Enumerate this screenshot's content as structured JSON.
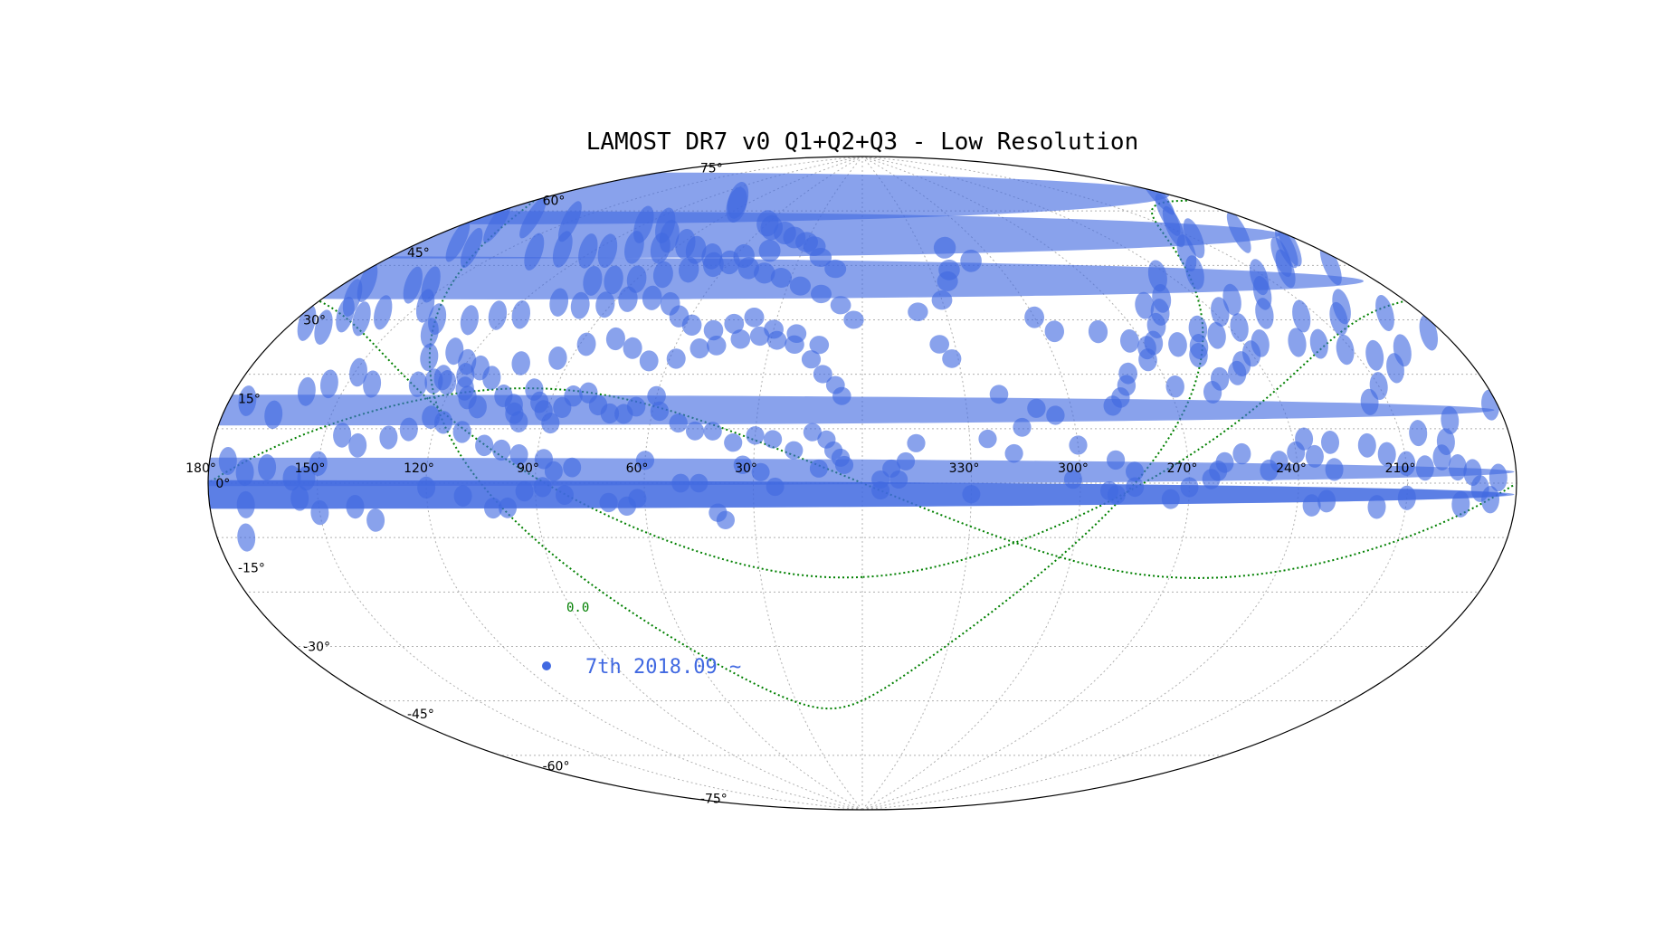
{
  "chart_data": {
    "type": "scatter",
    "projection": "aitoff",
    "title": "LAMOST DR7 v0 Q1+Q2+Q3 - Low Resolution",
    "xlabel": "",
    "ylabel": "",
    "lon_direction": "decreasing to the right",
    "grid": true,
    "lon_tick_labels": [
      {
        "lon": 330,
        "label": "330°"
      },
      {
        "lon": 300,
        "label": "300°"
      },
      {
        "lon": 270,
        "label": "270°"
      },
      {
        "lon": 240,
        "label": "240°"
      },
      {
        "lon": 210,
        "label": "210°"
      },
      {
        "lon": 180,
        "label": "180°"
      },
      {
        "lon": 150,
        "label": "150°"
      },
      {
        "lon": 120,
        "label": "120°"
      },
      {
        "lon": 90,
        "label": "90°"
      },
      {
        "lon": 60,
        "label": "60°"
      },
      {
        "lon": 30,
        "label": "30°"
      }
    ],
    "lat_tick_labels": [
      {
        "lat": 75,
        "label": "75°"
      },
      {
        "lat": 60,
        "label": "60°"
      },
      {
        "lat": 45,
        "label": "45°"
      },
      {
        "lat": 30,
        "label": "30°"
      },
      {
        "lat": 15,
        "label": "15°"
      },
      {
        "lat": 0,
        "label": "0°"
      },
      {
        "lat": -15,
        "label": "-15°"
      },
      {
        "lat": -30,
        "label": "-30°"
      },
      {
        "lat": -45,
        "label": "-45°"
      },
      {
        "lat": -60,
        "label": "-60°"
      },
      {
        "lat": -75,
        "label": "-75°"
      }
    ],
    "curve_annotation": {
      "text": "0.0",
      "color": "#008000"
    },
    "legend": {
      "label": "7th 2018.09 ~",
      "color": "#4169e1",
      "position": "lower-left"
    },
    "colors": {
      "plates": "#4169e1",
      "curves": "#008000",
      "grid": "#b0b0b0",
      "frame": "#000000"
    },
    "series": [
      {
        "name": "7th 2018.09 ~",
        "marker": "circle (2.5° radius field, projected)",
        "points": [
          [
            100,
            74
          ],
          [
            95,
            73
          ],
          [
            60,
            70
          ],
          [
            55,
            69
          ],
          [
            45,
            68
          ],
          [
            38,
            67
          ],
          [
            30,
            66
          ],
          [
            25,
            65
          ],
          [
            20,
            62
          ],
          [
            12,
            59
          ],
          [
            120,
            64
          ],
          [
            110,
            65
          ],
          [
            100,
            63
          ],
          [
            88,
            62
          ],
          [
            80,
            61
          ],
          [
            70,
            60
          ],
          [
            60,
            59
          ],
          [
            50,
            58
          ],
          [
            42,
            57
          ],
          [
            34,
            56
          ],
          [
            25,
            54
          ],
          [
            16,
            52
          ],
          [
            8,
            49
          ],
          [
            3,
            45
          ],
          [
            150,
            60
          ],
          [
            165,
            58
          ],
          [
            172,
            55
          ],
          [
            175,
            62
          ],
          [
            183,
            63
          ],
          [
            200,
            60
          ],
          [
            192,
            53
          ],
          [
            188,
            48
          ],
          [
            185,
            43
          ],
          [
            208,
            58
          ],
          [
            210,
            55
          ],
          [
            222,
            53
          ],
          [
            230,
            49
          ],
          [
            244,
            50
          ],
          [
            252,
            45
          ],
          [
            257,
            42
          ],
          [
            262,
            39
          ],
          [
            267,
            35
          ],
          [
            272,
            31
          ],
          [
            268,
            24
          ],
          [
            280,
            28
          ],
          [
            282,
            25
          ],
          [
            285,
            22
          ],
          [
            288,
            20
          ],
          [
            300,
            44
          ],
          [
            310,
            60
          ],
          [
            322,
            58
          ],
          [
            325,
            55
          ],
          [
            330,
            50
          ],
          [
            340,
            47
          ],
          [
            335,
            38
          ],
          [
            332,
            34
          ],
          [
            320,
            24
          ],
          [
            305,
            18
          ],
          [
            310,
            20
          ],
          [
            315,
            15
          ],
          [
            345,
            11
          ],
          [
            348,
            6
          ],
          [
            355,
            1
          ],
          [
            352,
            4
          ],
          [
            325,
            12
          ],
          [
            318,
            8
          ],
          [
            300,
            10
          ],
          [
            290,
            6
          ],
          [
            285,
            3
          ],
          [
            290,
            -3
          ],
          [
            255,
            7
          ],
          [
            262,
            3
          ],
          [
            237,
            10
          ],
          [
            230,
            3
          ],
          [
            232,
            -4
          ],
          [
            215,
            17
          ],
          [
            210,
            20
          ],
          [
            202,
            23
          ],
          [
            205,
            10
          ],
          [
            198,
            8
          ],
          [
            195,
            12
          ],
          [
            182,
            14
          ],
          [
            179,
            13
          ],
          [
            175,
            15
          ],
          [
            166,
            13
          ],
          [
            160,
            18
          ],
          [
            155,
            20
          ],
          [
            149,
            23
          ],
          [
            143,
            21
          ],
          [
            130,
            22
          ],
          [
            126,
            23
          ],
          [
            124,
            24
          ],
          [
            122,
            23
          ],
          [
            118,
            25
          ],
          [
            116,
            22
          ],
          [
            114,
            20
          ],
          [
            110,
            18
          ],
          [
            104,
            21
          ],
          [
            100,
            19
          ],
          [
            99,
            17
          ],
          [
            97,
            15
          ],
          [
            96,
            23
          ],
          [
            93,
            20
          ],
          [
            91,
            18
          ],
          [
            88,
            15
          ],
          [
            86,
            19
          ],
          [
            84,
            22
          ],
          [
            80,
            23
          ],
          [
            76,
            20
          ],
          [
            72,
            18
          ],
          [
            68,
            18
          ],
          [
            65,
            20
          ],
          [
            60,
            23
          ],
          [
            58,
            19
          ],
          [
            52,
            16
          ],
          [
            47,
            14
          ],
          [
            42,
            14
          ],
          [
            36,
            11
          ],
          [
            30,
            13
          ],
          [
            25,
            12
          ],
          [
            19,
            9
          ],
          [
            14,
            14
          ],
          [
            10,
            12
          ],
          [
            8,
            9
          ],
          [
            6,
            7
          ],
          [
            5,
            5
          ],
          [
            12,
            4
          ],
          [
            24,
            -1
          ],
          [
            45,
            0
          ],
          [
            50,
            0
          ],
          [
            60,
            6
          ],
          [
            80,
            4
          ],
          [
            85,
            3
          ],
          [
            88,
            6
          ],
          [
            95,
            7
          ],
          [
            100,
            8
          ],
          [
            105,
            9
          ],
          [
            112,
            12
          ],
          [
            118,
            14
          ],
          [
            122,
            15
          ],
          [
            127,
            12
          ],
          [
            132,
            10
          ],
          [
            140,
            8
          ],
          [
            145,
            10
          ],
          [
            150,
            4
          ],
          [
            153,
            1
          ],
          [
            157,
            1
          ],
          [
            164,
            3
          ],
          [
            170,
            2
          ],
          [
            175,
            4
          ],
          [
            178,
            2
          ],
          [
            185,
            1
          ],
          [
            192,
            2
          ],
          [
            196,
            3
          ],
          [
            200,
            5
          ],
          [
            205,
            3
          ],
          [
            210,
            4
          ],
          [
            215,
            6
          ],
          [
            220,
            8
          ],
          [
            230,
            9
          ],
          [
            235,
            6
          ],
          [
            240,
            7
          ],
          [
            245,
            5
          ],
          [
            248,
            3
          ],
          [
            260,
            5
          ],
          [
            264,
            1
          ],
          [
            270,
            -1
          ],
          [
            275,
            -4
          ],
          [
            285,
            -1
          ],
          [
            292,
            -2
          ],
          [
            302,
            1
          ],
          [
            330,
            -3
          ],
          [
            350,
            1
          ],
          [
            355,
            -2
          ],
          [
            170,
            -4
          ],
          [
            178,
            -2
          ],
          [
            187,
            -3
          ],
          [
            195,
            -4
          ],
          [
            210,
            -3
          ],
          [
            218,
            -5
          ],
          [
            236,
            -5
          ],
          [
            150,
            -6
          ],
          [
            155,
            -3
          ],
          [
            172,
            -10
          ],
          [
            180,
            -2
          ],
          [
            190,
            -1
          ],
          [
            140,
            -5
          ],
          [
            135,
            -8
          ],
          [
            120,
            -1
          ],
          [
            110,
            -3
          ],
          [
            102,
            -6
          ],
          [
            98,
            -6
          ],
          [
            93,
            -2
          ],
          [
            88,
            -1
          ],
          [
            82,
            -3
          ],
          [
            70,
            -5
          ],
          [
            65,
            -6
          ],
          [
            62,
            -4
          ],
          [
            33,
            5
          ],
          [
            28,
            3
          ],
          [
            40,
            -8
          ],
          [
            38,
            -10
          ],
          [
            138,
            33
          ],
          [
            132,
            28
          ],
          [
            126,
            30
          ],
          [
            120,
            28
          ],
          [
            115,
            27
          ],
          [
            110,
            25
          ],
          [
            104,
            29
          ],
          [
            94,
            31
          ],
          [
            88,
            35
          ],
          [
            80,
            37
          ],
          [
            73,
            35
          ],
          [
            66,
            32
          ],
          [
            58,
            33
          ],
          [
            52,
            36
          ],
          [
            47,
            37
          ],
          [
            40,
            39
          ],
          [
            34,
            40
          ],
          [
            28,
            39
          ],
          [
            22,
            38
          ],
          [
            16,
            34
          ],
          [
            12,
            30
          ],
          [
            8,
            27
          ],
          [
            6,
            24
          ],
          [
            158,
            35
          ],
          [
            162,
            33
          ],
          [
            168,
            33
          ],
          [
            170,
            30
          ],
          [
            176,
            30
          ],
          [
            184,
            28
          ],
          [
            196,
            26
          ],
          [
            205,
            26
          ],
          [
            212,
            28
          ],
          [
            218,
            30
          ],
          [
            224,
            31
          ],
          [
            235,
            32
          ],
          [
            240,
            30
          ],
          [
            245,
            28
          ],
          [
            248,
            26
          ],
          [
            254,
            25
          ],
          [
            258,
            22
          ],
          [
            160,
            41
          ],
          [
            155,
            42
          ],
          [
            148,
            38
          ],
          [
            140,
            36
          ],
          [
            130,
            37
          ],
          [
            123,
            39
          ],
          [
            116,
            40
          ],
          [
            108,
            44
          ],
          [
            100,
            44
          ],
          [
            92,
            45
          ],
          [
            86,
            47
          ],
          [
            78,
            48
          ],
          [
            70,
            47
          ],
          [
            64,
            44
          ],
          [
            58,
            42
          ],
          [
            50,
            41
          ],
          [
            44,
            43
          ],
          [
            38,
            45
          ],
          [
            30,
            42
          ],
          [
            22,
            41
          ],
          [
            14,
            38
          ],
          [
            180,
            39
          ],
          [
            174,
            39
          ],
          [
            172,
            36
          ],
          [
            190,
            33
          ],
          [
            200,
            36
          ],
          [
            205,
            34
          ],
          [
            215,
            36
          ],
          [
            225,
            38
          ],
          [
            237,
            36
          ],
          [
            246,
            35
          ],
          [
            256,
            31
          ],
          [
            260,
            34
          ],
          [
            270,
            34
          ],
          [
            274,
            36
          ],
          [
            282,
            39
          ],
          [
            296,
            40
          ],
          [
            162,
            50
          ],
          [
            170,
            50
          ],
          [
            178,
            50
          ],
          [
            186,
            48
          ],
          [
            195,
            47
          ],
          [
            200,
            45
          ],
          [
            212,
            45
          ],
          [
            218,
            42
          ],
          [
            230,
            42
          ],
          [
            238,
            40
          ],
          [
            250,
            37
          ],
          [
            254,
            33
          ],
          [
            105,
            50
          ],
          [
            98,
            51
          ],
          [
            90,
            52
          ],
          [
            82,
            54
          ],
          [
            74,
            56
          ],
          [
            66,
            58
          ],
          [
            56,
            61
          ],
          [
            46,
            63
          ],
          [
            140,
            53
          ],
          [
            132,
            55
          ],
          [
            122,
            56
          ],
          [
            115,
            57
          ],
          [
            107,
            59
          ],
          [
            96,
            60
          ],
          [
            318,
            64
          ],
          [
            260,
            44
          ]
        ]
      }
    ],
    "curves": [
      {
        "name": "curve-a",
        "style": "dotted",
        "color": "#008000"
      },
      {
        "name": "curve-b",
        "style": "dotted",
        "color": "#008000"
      },
      {
        "name": "curve-c",
        "style": "dotted",
        "color": "#008000"
      }
    ]
  }
}
